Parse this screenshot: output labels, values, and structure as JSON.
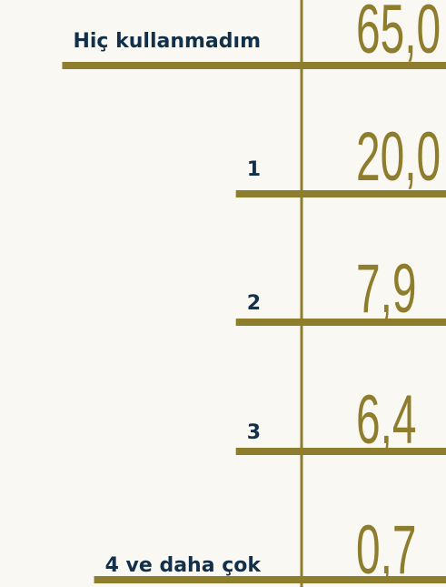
{
  "rows": [
    {
      "label": "Hiç kullanmadım",
      "value": "65,0"
    },
    {
      "label": "1",
      "value": "20,0"
    },
    {
      "label": "2",
      "value": "7,9"
    },
    {
      "label": "3",
      "value": "6,4"
    },
    {
      "label": "4 ve daha çok",
      "value": "0,7"
    }
  ]
}
